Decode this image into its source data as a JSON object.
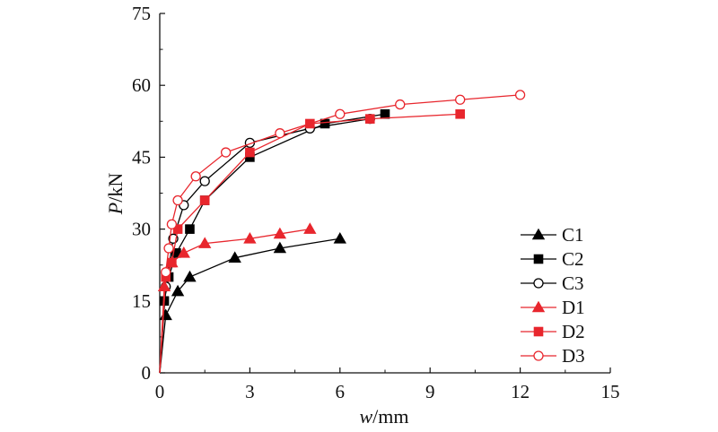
{
  "chart_data": {
    "type": "line",
    "xlabel": {
      "italic": "w",
      "rest": "/mm"
    },
    "ylabel": {
      "italic": "P",
      "rest": "/kN"
    },
    "xlim": [
      0,
      15
    ],
    "ylim": [
      0,
      75
    ],
    "xticks": [
      0,
      3,
      6,
      9,
      12,
      15
    ],
    "yticks": [
      0,
      15,
      30,
      45,
      60,
      75
    ],
    "grid": false,
    "legend_position": "right",
    "series": [
      {
        "name": "C1",
        "color": "#000000",
        "marker": "triangle-filled",
        "x": [
          0,
          0.2,
          0.6,
          1.0,
          2.5,
          4.0,
          6.0
        ],
        "y": [
          0,
          12,
          17,
          20,
          24,
          26,
          28
        ]
      },
      {
        "name": "C2",
        "color": "#000000",
        "marker": "square-filled",
        "x": [
          0,
          0.15,
          0.3,
          0.55,
          1.0,
          1.5,
          3.0,
          5.5,
          7.5
        ],
        "y": [
          0,
          15,
          20,
          25,
          30,
          36,
          45,
          52,
          54
        ]
      },
      {
        "name": "C3",
        "color": "#000000",
        "marker": "circle-open",
        "x": [
          0,
          0.2,
          0.45,
          0.8,
          1.5,
          3.0,
          5.0,
          7.0
        ],
        "y": [
          0,
          18,
          28,
          35,
          40,
          48,
          51,
          53
        ]
      },
      {
        "name": "D1",
        "color": "#e8262d",
        "marker": "triangle-filled",
        "x": [
          0,
          0.15,
          0.4,
          0.8,
          1.5,
          3.0,
          4.0,
          5.0
        ],
        "y": [
          0,
          18,
          23,
          25,
          27,
          28,
          29,
          30
        ]
      },
      {
        "name": "D2",
        "color": "#e8262d",
        "marker": "square-filled",
        "x": [
          0,
          0.2,
          0.4,
          0.6,
          1.5,
          3.0,
          5.0,
          7.0,
          10.0
        ],
        "y": [
          0,
          20,
          23,
          30,
          36,
          46,
          52,
          53,
          54
        ]
      },
      {
        "name": "D3",
        "color": "#e8262d",
        "marker": "circle-open",
        "x": [
          0,
          0.2,
          0.3,
          0.4,
          0.6,
          1.2,
          2.2,
          4.0,
          6.0,
          8.0,
          10.0,
          12.0
        ],
        "y": [
          0,
          21,
          26,
          31,
          36,
          41,
          46,
          50,
          54,
          56,
          57,
          58
        ]
      }
    ]
  }
}
